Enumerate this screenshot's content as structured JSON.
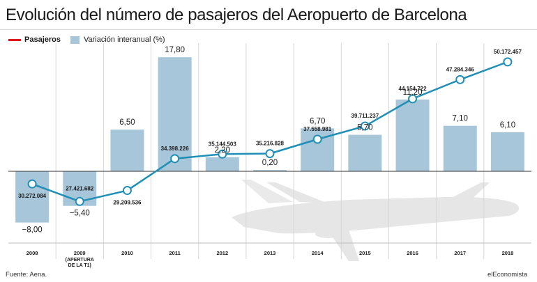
{
  "title": "Evolución del número de pasajeros del Aeropuerto de Barcelona",
  "legend": {
    "line_label": "Pasajeros",
    "bar_label": "Variación interanual (%)"
  },
  "footer": {
    "source": "Fuente: Aena.",
    "brand": "elEconomista"
  },
  "colors": {
    "bars": "#a8c6d9",
    "line": "#1f8fb5",
    "legend_line": "#e0191a"
  },
  "icons": [
    "airplane-watermark-icon"
  ],
  "chart_data": {
    "type": "bar",
    "categories": [
      "2008",
      "2009",
      "2010",
      "2011",
      "2012",
      "2013",
      "2014",
      "2015",
      "2016",
      "2017",
      "2018"
    ],
    "category_sublabels": [
      "",
      "(APERTURA DE LA T1)",
      "",
      "",
      "",
      "",
      "",
      "",
      "",
      "",
      ""
    ],
    "series": [
      {
        "name": "Variación interanual (%)",
        "type": "bar",
        "values": [
          -8.0,
          -5.4,
          6.5,
          17.8,
          2.2,
          0.2,
          6.7,
          5.7,
          11.2,
          7.1,
          6.1
        ],
        "labels": [
          "−8,00",
          "−5,40",
          "6,50",
          "17,80",
          "2,20",
          "0,20",
          "6,70",
          "5,70",
          "11,20",
          "7,10",
          "6,10"
        ]
      },
      {
        "name": "Pasajeros",
        "type": "line",
        "values": [
          30272084,
          27421682,
          29209536,
          34398226,
          35144503,
          35216828,
          37558981,
          39711237,
          44154722,
          47284346,
          50172457
        ],
        "labels": [
          "30.272.084",
          "27.421.682",
          "29.209.536",
          "34.398.226",
          "35.144.503",
          "35.216.828",
          "37.558.981",
          "39.711.237",
          "44.154.722",
          "47.284.346",
          "50.172.457"
        ]
      }
    ],
    "grid": "vertical separators",
    "legend_position": "top-left"
  }
}
